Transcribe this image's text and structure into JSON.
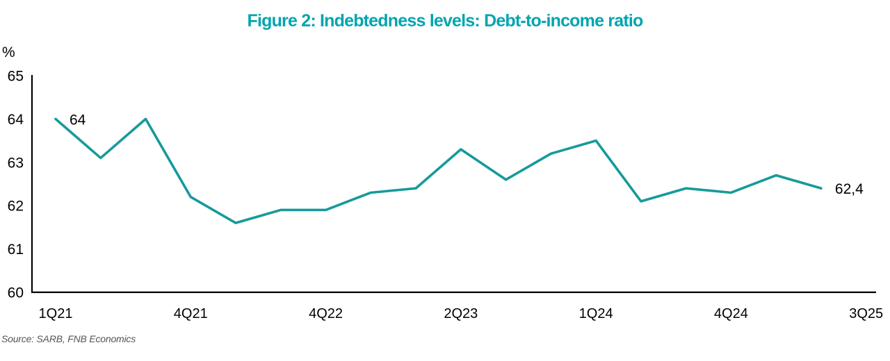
{
  "title": "Figure 2: Indebtedness levels: Debt-to-income ratio",
  "source": "Source: SARB, FNB Economics",
  "colors": {
    "title": "#00a5b0",
    "line": "#169a9b",
    "axis": "#000000",
    "tick_text": "#000000",
    "source_text": "#555555"
  },
  "chart_data": {
    "type": "line",
    "title": "Figure 2: Indebtedness levels: Debt-to-income ratio",
    "ylabel": "%",
    "ylim": [
      60,
      65
    ],
    "yticks": [
      60,
      61,
      62,
      63,
      64,
      65
    ],
    "x_labels": [
      "1Q21",
      "4Q21",
      "4Q22",
      "2Q23",
      "1Q24",
      "4Q24",
      "3Q25"
    ],
    "x_label_slots": [
      0,
      3,
      6,
      9,
      12,
      15,
      18
    ],
    "series": [
      {
        "name": "Debt-to-income ratio",
        "values": [
          64.0,
          63.1,
          64.0,
          62.2,
          61.6,
          61.9,
          61.9,
          62.3,
          62.4,
          63.3,
          62.6,
          63.2,
          63.5,
          62.1,
          62.4,
          62.3,
          62.7,
          62.4
        ]
      }
    ],
    "point_labels": [
      {
        "index": 0,
        "text": "64"
      },
      {
        "index": 17,
        "text": "62,4"
      }
    ],
    "line_color": "#169a9b",
    "grid": false,
    "legend": false
  }
}
